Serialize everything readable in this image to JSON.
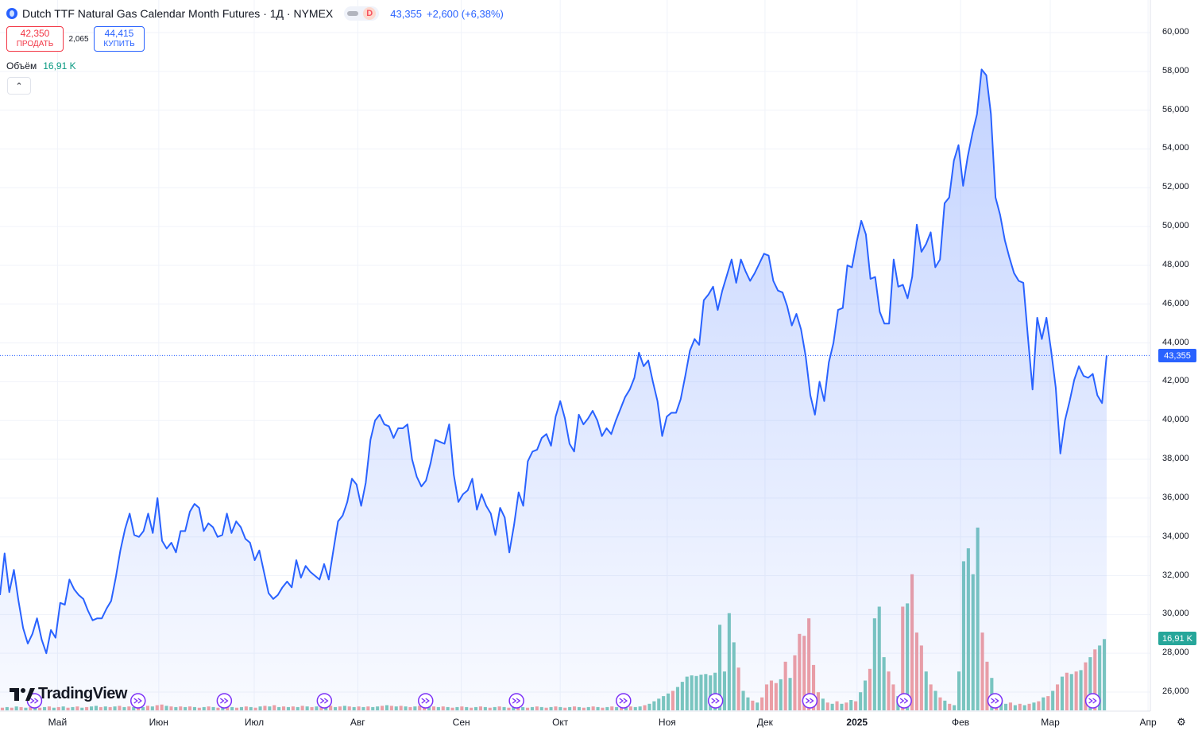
{
  "header": {
    "title": "Dutch TTF Natural Gas Calendar Month Futures · 1Д · NYMEX",
    "badge": "D",
    "last": "43,355",
    "change": "+2,600 (+6,38%)"
  },
  "trade": {
    "sell_price": "42,350",
    "sell_label": "ПРОДАТЬ",
    "spread": "2,065",
    "buy_price": "44,415",
    "buy_label": "КУПИТЬ"
  },
  "volume": {
    "label": "Объём",
    "value": "16,91 K"
  },
  "brand": "TradingView",
  "colors": {
    "line": "#2962ff",
    "vol_up": "#7cc8bd",
    "vol_down": "#f1a0a3",
    "sell": "#f23645",
    "buy": "#2962ff",
    "vol_label": "#089981"
  },
  "icons": [
    "tradingview-logo-icon",
    "dividend-marker-icon",
    "chevron-up-icon",
    "gear-icon"
  ],
  "chart_data": {
    "type": "line",
    "ylim": [
      25000,
      61000
    ],
    "y_ticks": [
      "60,000",
      "58,000",
      "56,000",
      "54,000",
      "52,000",
      "50,000",
      "48,000",
      "46,000",
      "44,000",
      "42,000",
      "40,000",
      "38,000",
      "36,000",
      "34,000",
      "32,000",
      "30,000",
      "28,000",
      "26,000"
    ],
    "x_ticks": [
      {
        "label": "Май",
        "bold": false
      },
      {
        "label": "Июн",
        "bold": false
      },
      {
        "label": "Июл",
        "bold": false
      },
      {
        "label": "Авг",
        "bold": false
      },
      {
        "label": "Сен",
        "bold": false
      },
      {
        "label": "Окт",
        "bold": false
      },
      {
        "label": "Ноя",
        "bold": false
      },
      {
        "label": "Дек",
        "bold": false
      },
      {
        "label": "2025",
        "bold": true
      },
      {
        "label": "Фев",
        "bold": false
      },
      {
        "label": "Мар",
        "bold": false
      },
      {
        "label": "Апр",
        "bold": false
      }
    ],
    "last_value": 43355,
    "last_label": "43,355",
    "volume_last_label": "16,91 K",
    "price": [
      31000,
      33150,
      31150,
      32300,
      30700,
      29300,
      28500,
      29000,
      29800,
      28700,
      28000,
      29200,
      28800,
      30600,
      30500,
      31800,
      31300,
      31000,
      30800,
      30200,
      29700,
      29800,
      29800,
      30300,
      30700,
      31900,
      33300,
      34400,
      35200,
      34100,
      34000,
      34300,
      35200,
      34200,
      36000,
      33800,
      33400,
      33700,
      33200,
      34300,
      34300,
      35300,
      35700,
      35500,
      34300,
      34700,
      34500,
      34000,
      34100,
      35200,
      34200,
      34800,
      34500,
      33900,
      33700,
      32800,
      33300,
      32200,
      31100,
      30800,
      31000,
      31400,
      31700,
      31400,
      32800,
      31900,
      32500,
      32200,
      32000,
      31800,
      32600,
      31800,
      33300,
      34800,
      35100,
      35800,
      37000,
      36700,
      35600,
      36800,
      39000,
      40000,
      40300,
      39800,
      39700,
      39100,
      39600,
      39600,
      39800,
      38000,
      37100,
      36600,
      36900,
      37800,
      39000,
      38900,
      38800,
      39800,
      37200,
      35800,
      36200,
      36400,
      37000,
      35400,
      36200,
      35600,
      35200,
      34100,
      35500,
      35000,
      33200,
      34600,
      36300,
      35600,
      37900,
      38400,
      38500,
      39100,
      39300,
      38700,
      40200,
      41000,
      40100,
      38800,
      38400,
      40300,
      39800,
      40100,
      40500,
      40000,
      39200,
      39600,
      39300,
      40000,
      40600,
      41200,
      41600,
      42200,
      43500,
      42800,
      43100,
      42000,
      41000,
      39200,
      40200,
      40400,
      40400,
      41100,
      42300,
      43600,
      44200,
      43900,
      46200,
      46500,
      46900,
      45700,
      46700,
      47500,
      48300,
      47100,
      48300,
      47700,
      47200,
      47600,
      48100,
      48600,
      48500,
      47200,
      46700,
      46600,
      45900,
      44900,
      45500,
      44700,
      43300,
      41300,
      40300,
      42000,
      41000,
      43000,
      44000,
      45700,
      45800,
      48000,
      47900,
      49200,
      50300,
      49600,
      47300,
      47400,
      45600,
      45000,
      45000,
      48300,
      46900,
      47000,
      46300,
      47400,
      50100,
      48700,
      49100,
      49700,
      47900,
      48300,
      51200,
      51500,
      53400,
      54200,
      52100,
      53600,
      54800,
      55800,
      58100,
      57800,
      55800,
      51500,
      50600,
      49300,
      48400,
      47600,
      47200,
      47100,
      44300,
      41600,
      45300,
      44200,
      45300,
      43600,
      41700,
      38300,
      40000,
      41000,
      42100,
      42800,
      42300,
      42200,
      42400,
      41300,
      40900,
      43355
    ],
    "volume": [
      {
        "v": 0.04,
        "up": false
      },
      {
        "v": 0.05,
        "up": true
      },
      {
        "v": 0.04,
        "up": false
      },
      {
        "v": 0.06,
        "up": true
      },
      {
        "v": 0.05,
        "up": false
      },
      {
        "v": 0.04,
        "up": true
      },
      {
        "v": 0.05,
        "up": false
      },
      {
        "v": 0.06,
        "up": true
      },
      {
        "v": 0.04,
        "up": false
      },
      {
        "v": 0.05,
        "up": true
      },
      {
        "v": 0.06,
        "up": false
      },
      {
        "v": 0.04,
        "up": true
      },
      {
        "v": 0.05,
        "up": false
      },
      {
        "v": 0.06,
        "up": true
      },
      {
        "v": 0.04,
        "up": false
      },
      {
        "v": 0.05,
        "up": true
      },
      {
        "v": 0.06,
        "up": false
      },
      {
        "v": 0.04,
        "up": true
      },
      {
        "v": 0.05,
        "up": false
      },
      {
        "v": 0.06,
        "up": true
      },
      {
        "v": 0.07,
        "up": true
      },
      {
        "v": 0.05,
        "up": false
      },
      {
        "v": 0.06,
        "up": true
      },
      {
        "v": 0.05,
        "up": false
      },
      {
        "v": 0.06,
        "up": true
      },
      {
        "v": 0.07,
        "up": false
      },
      {
        "v": 0.05,
        "up": true
      },
      {
        "v": 0.06,
        "up": false
      },
      {
        "v": 0.05,
        "up": true
      },
      {
        "v": 0.06,
        "up": false
      },
      {
        "v": 0.05,
        "up": true
      },
      {
        "v": 0.07,
        "up": false
      },
      {
        "v": 0.06,
        "up": true
      },
      {
        "v": 0.08,
        "up": false
      },
      {
        "v": 0.09,
        "up": false
      },
      {
        "v": 0.07,
        "up": true
      },
      {
        "v": 0.06,
        "up": false
      },
      {
        "v": 0.05,
        "up": true
      },
      {
        "v": 0.06,
        "up": false
      },
      {
        "v": 0.05,
        "up": true
      },
      {
        "v": 0.06,
        "up": false
      },
      {
        "v": 0.05,
        "up": true
      },
      {
        "v": 0.04,
        "up": false
      },
      {
        "v": 0.05,
        "up": true
      },
      {
        "v": 0.06,
        "up": false
      },
      {
        "v": 0.05,
        "up": true
      },
      {
        "v": 0.04,
        "up": false
      },
      {
        "v": 0.05,
        "up": true
      },
      {
        "v": 0.06,
        "up": false
      },
      {
        "v": 0.05,
        "up": true
      },
      {
        "v": 0.04,
        "up": false
      },
      {
        "v": 0.05,
        "up": true
      },
      {
        "v": 0.06,
        "up": false
      },
      {
        "v": 0.05,
        "up": true
      },
      {
        "v": 0.04,
        "up": false
      },
      {
        "v": 0.06,
        "up": true
      },
      {
        "v": 0.07,
        "up": false
      },
      {
        "v": 0.06,
        "up": true
      },
      {
        "v": 0.08,
        "up": false
      },
      {
        "v": 0.05,
        "up": true
      },
      {
        "v": 0.06,
        "up": false
      },
      {
        "v": 0.05,
        "up": true
      },
      {
        "v": 0.06,
        "up": false
      },
      {
        "v": 0.05,
        "up": true
      },
      {
        "v": 0.07,
        "up": false
      },
      {
        "v": 0.06,
        "up": true
      },
      {
        "v": 0.05,
        "up": false
      },
      {
        "v": 0.06,
        "up": true
      },
      {
        "v": 0.05,
        "up": false
      },
      {
        "v": 0.06,
        "up": true
      },
      {
        "v": 0.07,
        "up": false
      },
      {
        "v": 0.05,
        "up": true
      },
      {
        "v": 0.06,
        "up": false
      },
      {
        "v": 0.07,
        "up": true
      },
      {
        "v": 0.06,
        "up": false
      },
      {
        "v": 0.05,
        "up": true
      },
      {
        "v": 0.06,
        "up": false
      },
      {
        "v": 0.05,
        "up": true
      },
      {
        "v": 0.06,
        "up": false
      },
      {
        "v": 0.05,
        "up": true
      },
      {
        "v": 0.06,
        "up": true
      },
      {
        "v": 0.07,
        "up": false
      },
      {
        "v": 0.08,
        "up": true
      },
      {
        "v": 0.07,
        "up": false
      },
      {
        "v": 0.06,
        "up": true
      },
      {
        "v": 0.07,
        "up": false
      },
      {
        "v": 0.06,
        "up": true
      },
      {
        "v": 0.05,
        "up": false
      },
      {
        "v": 0.06,
        "up": true
      },
      {
        "v": 0.07,
        "up": false
      },
      {
        "v": 0.06,
        "up": false
      },
      {
        "v": 0.05,
        "up": true
      },
      {
        "v": 0.06,
        "up": false
      },
      {
        "v": 0.05,
        "up": true
      },
      {
        "v": 0.06,
        "up": false
      },
      {
        "v": 0.05,
        "up": true
      },
      {
        "v": 0.04,
        "up": false
      },
      {
        "v": 0.05,
        "up": true
      },
      {
        "v": 0.06,
        "up": false
      },
      {
        "v": 0.05,
        "up": true
      },
      {
        "v": 0.04,
        "up": false
      },
      {
        "v": 0.05,
        "up": true
      },
      {
        "v": 0.06,
        "up": false
      },
      {
        "v": 0.05,
        "up": true
      },
      {
        "v": 0.04,
        "up": false
      },
      {
        "v": 0.05,
        "up": true
      },
      {
        "v": 0.06,
        "up": false
      },
      {
        "v": 0.05,
        "up": true
      },
      {
        "v": 0.04,
        "up": false
      },
      {
        "v": 0.05,
        "up": true
      },
      {
        "v": 0.06,
        "up": false
      },
      {
        "v": 0.05,
        "up": true
      },
      {
        "v": 0.04,
        "up": false
      },
      {
        "v": 0.05,
        "up": true
      },
      {
        "v": 0.06,
        "up": false
      },
      {
        "v": 0.05,
        "up": true
      },
      {
        "v": 0.04,
        "up": false
      },
      {
        "v": 0.05,
        "up": true
      },
      {
        "v": 0.06,
        "up": false
      },
      {
        "v": 0.05,
        "up": true
      },
      {
        "v": 0.04,
        "up": false
      },
      {
        "v": 0.05,
        "up": true
      },
      {
        "v": 0.06,
        "up": false
      },
      {
        "v": 0.05,
        "up": true
      },
      {
        "v": 0.04,
        "up": false
      },
      {
        "v": 0.05,
        "up": true
      },
      {
        "v": 0.06,
        "up": false
      },
      {
        "v": 0.05,
        "up": true
      },
      {
        "v": 0.04,
        "up": false
      },
      {
        "v": 0.05,
        "up": true
      },
      {
        "v": 0.06,
        "up": false
      },
      {
        "v": 0.05,
        "up": true
      },
      {
        "v": 0.04,
        "up": false
      },
      {
        "v": 0.05,
        "up": true
      },
      {
        "v": 0.06,
        "up": false
      },
      {
        "v": 0.05,
        "up": true
      },
      {
        "v": 0.06,
        "up": true
      },
      {
        "v": 0.08,
        "up": false
      },
      {
        "v": 0.1,
        "up": true
      },
      {
        "v": 0.14,
        "up": true
      },
      {
        "v": 0.18,
        "up": true
      },
      {
        "v": 0.22,
        "up": true
      },
      {
        "v": 0.26,
        "up": true
      },
      {
        "v": 0.3,
        "up": false
      },
      {
        "v": 0.36,
        "up": true
      },
      {
        "v": 0.44,
        "up": true
      },
      {
        "v": 0.52,
        "up": true
      },
      {
        "v": 0.54,
        "up": true
      },
      {
        "v": 0.53,
        "up": true
      },
      {
        "v": 0.55,
        "up": true
      },
      {
        "v": 0.56,
        "up": true
      },
      {
        "v": 0.54,
        "up": true
      },
      {
        "v": 0.58,
        "up": true
      },
      {
        "v": 1.32,
        "up": true
      },
      {
        "v": 0.6,
        "up": true
      },
      {
        "v": 1.5,
        "up": true
      },
      {
        "v": 1.05,
        "up": true
      },
      {
        "v": 0.66,
        "up": false
      },
      {
        "v": 0.3,
        "up": true
      },
      {
        "v": 0.2,
        "up": true
      },
      {
        "v": 0.15,
        "up": false
      },
      {
        "v": 0.12,
        "up": true
      },
      {
        "v": 0.2,
        "up": false
      },
      {
        "v": 0.4,
        "up": false
      },
      {
        "v": 0.46,
        "up": false
      },
      {
        "v": 0.42,
        "up": false
      },
      {
        "v": 0.48,
        "up": true
      },
      {
        "v": 0.75,
        "up": false
      },
      {
        "v": 0.5,
        "up": true
      },
      {
        "v": 0.85,
        "up": false
      },
      {
        "v": 1.18,
        "up": false
      },
      {
        "v": 1.15,
        "up": false
      },
      {
        "v": 1.42,
        "up": false
      },
      {
        "v": 0.7,
        "up": false
      },
      {
        "v": 0.28,
        "up": false
      },
      {
        "v": 0.18,
        "up": true
      },
      {
        "v": 0.12,
        "up": false
      },
      {
        "v": 0.1,
        "up": true
      },
      {
        "v": 0.14,
        "up": false
      },
      {
        "v": 0.1,
        "up": true
      },
      {
        "v": 0.12,
        "up": false
      },
      {
        "v": 0.16,
        "up": true
      },
      {
        "v": 0.14,
        "up": false
      },
      {
        "v": 0.28,
        "up": true
      },
      {
        "v": 0.46,
        "up": true
      },
      {
        "v": 0.64,
        "up": false
      },
      {
        "v": 1.42,
        "up": true
      },
      {
        "v": 1.6,
        "up": true
      },
      {
        "v": 0.82,
        "up": true
      },
      {
        "v": 0.6,
        "up": false
      },
      {
        "v": 0.4,
        "up": false
      },
      {
        "v": 0.22,
        "up": true
      },
      {
        "v": 1.6,
        "up": false
      },
      {
        "v": 1.65,
        "up": true
      },
      {
        "v": 2.1,
        "up": false
      },
      {
        "v": 1.2,
        "up": false
      },
      {
        "v": 1.0,
        "up": false
      },
      {
        "v": 0.6,
        "up": true
      },
      {
        "v": 0.4,
        "up": false
      },
      {
        "v": 0.3,
        "up": true
      },
      {
        "v": 0.2,
        "up": false
      },
      {
        "v": 0.15,
        "up": true
      },
      {
        "v": 0.1,
        "up": false
      },
      {
        "v": 0.08,
        "up": true
      },
      {
        "v": 0.6,
        "up": true
      },
      {
        "v": 2.3,
        "up": true
      },
      {
        "v": 2.5,
        "up": true
      },
      {
        "v": 2.1,
        "up": true
      },
      {
        "v": 2.82,
        "up": true
      },
      {
        "v": 1.2,
        "up": false
      },
      {
        "v": 0.75,
        "up": false
      },
      {
        "v": 0.5,
        "up": true
      },
      {
        "v": 0.25,
        "up": false
      },
      {
        "v": 0.16,
        "up": true
      },
      {
        "v": 0.1,
        "up": true
      },
      {
        "v": 0.12,
        "up": false
      },
      {
        "v": 0.08,
        "up": true
      },
      {
        "v": 0.1,
        "up": false
      },
      {
        "v": 0.08,
        "up": true
      },
      {
        "v": 0.1,
        "up": false
      },
      {
        "v": 0.12,
        "up": true
      },
      {
        "v": 0.14,
        "up": false
      },
      {
        "v": 0.2,
        "up": true
      },
      {
        "v": 0.22,
        "up": false
      },
      {
        "v": 0.3,
        "up": true
      },
      {
        "v": 0.4,
        "up": false
      },
      {
        "v": 0.52,
        "up": true
      },
      {
        "v": 0.58,
        "up": false
      },
      {
        "v": 0.56,
        "up": true
      },
      {
        "v": 0.6,
        "up": false
      },
      {
        "v": 0.62,
        "up": true
      },
      {
        "v": 0.74,
        "up": false
      },
      {
        "v": 0.82,
        "up": true
      },
      {
        "v": 0.94,
        "up": false
      },
      {
        "v": 1.0,
        "up": true
      },
      {
        "v": 1.1,
        "up": true
      }
    ],
    "volume_scale_max": 2.82,
    "dividend_markers": [
      0.03,
      0.12,
      0.195,
      0.282,
      0.37,
      0.449,
      0.542,
      0.622,
      0.704,
      0.786,
      0.865,
      0.95
    ]
  }
}
